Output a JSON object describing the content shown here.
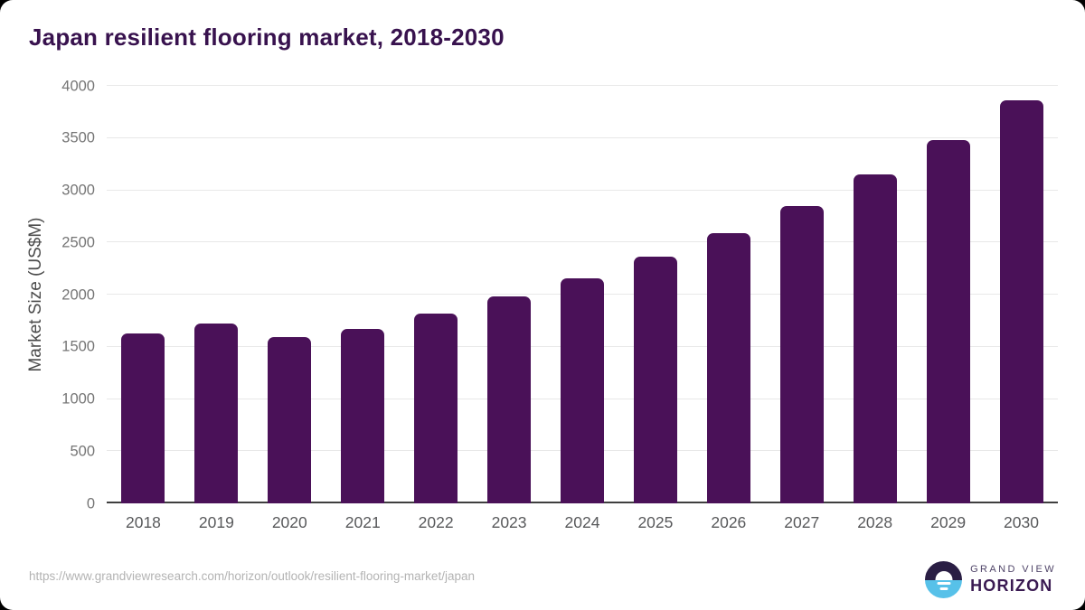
{
  "chart_data": {
    "type": "bar",
    "title": "Japan resilient flooring market, 2018-2030",
    "xlabel": "",
    "ylabel": "Market Size (US$M)",
    "categories": [
      "2018",
      "2019",
      "2020",
      "2021",
      "2022",
      "2023",
      "2024",
      "2025",
      "2026",
      "2027",
      "2028",
      "2029",
      "2030"
    ],
    "values": [
      1630,
      1725,
      1595,
      1675,
      1815,
      1985,
      2160,
      2365,
      2590,
      2850,
      3155,
      3480,
      3860
    ],
    "ylim": [
      0,
      4000
    ],
    "y_ticks": [
      0,
      500,
      1000,
      1500,
      2000,
      2500,
      3000,
      3500,
      4000
    ],
    "grid": "horizontal",
    "legend": "none",
    "bar_color": "#4a1158"
  },
  "footer": {
    "source_url": "https://www.grandviewresearch.com/horizon/outlook/resilient-flooring-market/japan",
    "logo": {
      "line1": "GRAND VIEW",
      "line2": "HORIZON"
    }
  },
  "colors": {
    "title_text": "#38124e",
    "bar": "#4a1158",
    "y_axis_title": "#4c4c4c",
    "y_tick_label": "#757575",
    "x_tick_label": "#58595b",
    "gridline": "#e8e8e8",
    "axis_line": "#3f3f3f",
    "source_text": "#b3b3b3",
    "logo_navy": "#2a1e44",
    "logo_blue": "#57c1e9",
    "card_background": "#ffffff"
  }
}
